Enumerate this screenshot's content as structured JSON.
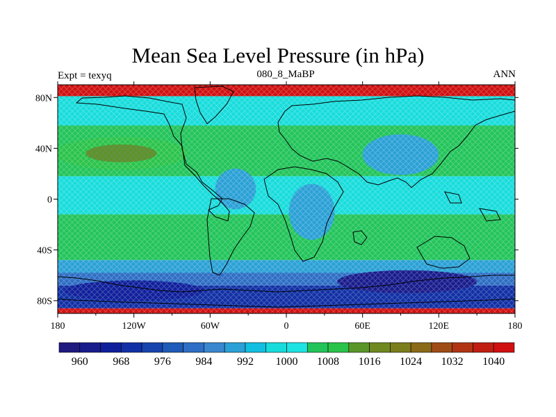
{
  "chart_data": {
    "type": "heatmap",
    "title": "Mean Sea Level Pressure (in hPa)",
    "subtitle": "080_8_MaBP",
    "left_label": "Expt = texyq",
    "right_label": "ANN",
    "x_ticks": [
      "180",
      "120W",
      "60W",
      "0",
      "60E",
      "120E",
      "180"
    ],
    "y_ticks": [
      "80N",
      "40N",
      "0",
      "40S",
      "80S"
    ],
    "xlim": [
      -180,
      180
    ],
    "ylim": [
      -90,
      90
    ],
    "colorbar": {
      "levels": [
        956,
        960,
        964,
        968,
        972,
        976,
        980,
        984,
        988,
        992,
        996,
        1000,
        1004,
        1008,
        1012,
        1016,
        1020,
        1024,
        1028,
        1032,
        1036,
        1040,
        1044
      ],
      "colors": [
        "#1f1a80",
        "#191c8c",
        "#0f1f9b",
        "#1130a5",
        "#1744ad",
        "#1f5bb8",
        "#2e6ec4",
        "#3a86cf",
        "#2aa0d6",
        "#12bfe0",
        "#18dcdc",
        "#1fe3e3",
        "#22c45a",
        "#2ac34a",
        "#5a9528",
        "#6f8820",
        "#7b7d1c",
        "#8b6a18",
        "#a04b16",
        "#b03414",
        "#c01e12",
        "#d01010"
      ],
      "labels": [
        "960",
        "968",
        "976",
        "984",
        "992",
        "1000",
        "1008",
        "1016",
        "1024",
        "1032",
        "1040"
      ]
    },
    "bands": [
      {
        "lat": [
          90,
          81
        ],
        "value": 1040
      },
      {
        "lat": [
          81,
          58
        ],
        "value": 996
      },
      {
        "lat": [
          58,
          18
        ],
        "value": 1004
      },
      {
        "lat": [
          18,
          -12
        ],
        "value": 998
      },
      {
        "lat": [
          -12,
          -48
        ],
        "value": 1004
      },
      {
        "lat": [
          -48,
          -58
        ],
        "value": 990
      },
      {
        "lat": [
          -58,
          -68
        ],
        "value": 980
      },
      {
        "lat": [
          -68,
          -86
        ],
        "value": 968
      },
      {
        "lat": [
          -86,
          -90
        ],
        "value": 1040
      }
    ],
    "blobs": [
      {
        "lon": -130,
        "lat": 36,
        "rlon": 52,
        "rlat": 13,
        "value": 1008
      },
      {
        "lon": -130,
        "lat": 36,
        "rlon": 28,
        "rlat": 7,
        "value": 1012
      },
      {
        "lon": 48,
        "lat": 32,
        "rlon": 55,
        "rlat": 12,
        "value": 1006
      },
      {
        "lon": -95,
        "lat": -28,
        "rlon": 55,
        "rlat": 13,
        "value": 1006
      },
      {
        "lon": 70,
        "lat": -28,
        "rlon": 55,
        "rlat": 11,
        "value": 1006
      },
      {
        "lon": 90,
        "lat": 35,
        "rlon": 30,
        "rlat": 16,
        "value": 988
      },
      {
        "lon": -40,
        "lat": 8,
        "rlon": 16,
        "rlat": 16,
        "value": 990
      },
      {
        "lon": 20,
        "lat": -10,
        "rlon": 18,
        "rlat": 22,
        "value": 990
      },
      {
        "lon": 95,
        "lat": -65,
        "rlon": 55,
        "rlat": 9,
        "value": 962
      },
      {
        "lon": -120,
        "lat": -72,
        "rlon": 55,
        "rlat": 8,
        "value": 966
      }
    ]
  }
}
